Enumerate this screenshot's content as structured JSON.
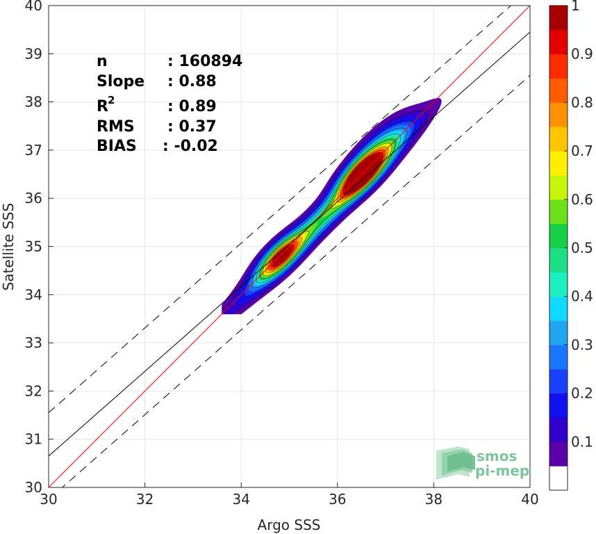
{
  "chart_data": {
    "type": "heatmap",
    "title": "",
    "xlabel": "Argo SSS",
    "ylabel": "Satellite SSS",
    "xlim": [
      30,
      40
    ],
    "ylim": [
      30,
      40
    ],
    "xticks": [
      "30",
      "32",
      "34",
      "36",
      "38",
      "40"
    ],
    "yticks": [
      "30",
      "31",
      "32",
      "33",
      "34",
      "35",
      "36",
      "37",
      "38",
      "39",
      "40"
    ],
    "grid": true,
    "stats": {
      "n_label": "n",
      "n_value": ": 160894",
      "slope_label": "Slope",
      "slope_value": ": 0.88",
      "r2_label": "R",
      "r2_sup": "2",
      "r2_value": ": 0.89",
      "rms_label": "RMS",
      "rms_value": ": 0.37",
      "bias_label": "BIAS",
      "bias_value": ": -0.02"
    },
    "lines": [
      {
        "name": "one-to-one",
        "color": "#ff0000",
        "style": "solid",
        "points": [
          [
            30,
            30
          ],
          [
            40,
            40
          ]
        ]
      },
      {
        "name": "regression",
        "color": "#000000",
        "style": "solid",
        "points": [
          [
            30,
            30.65
          ],
          [
            40,
            39.45
          ]
        ]
      },
      {
        "name": "upper-bound",
        "color": "#000000",
        "style": "dashed",
        "points": [
          [
            30,
            31.55
          ],
          [
            40,
            40.35
          ]
        ]
      },
      {
        "name": "lower-bound",
        "color": "#000000",
        "style": "dashed",
        "points": [
          [
            30,
            29.75
          ],
          [
            40,
            38.55
          ]
        ]
      }
    ],
    "density": {
      "base": 0.03,
      "peaks": [
        {
          "x": 34.8,
          "y": 34.78,
          "amp": 0.7,
          "su": 0.4,
          "sv": 0.16
        },
        {
          "x": 36.5,
          "y": 36.5,
          "amp": 1.0,
          "su": 0.42,
          "sv": 0.17
        },
        {
          "x": 35.7,
          "y": 35.6,
          "amp": 0.5,
          "su": 1.55,
          "sv": 0.15
        },
        {
          "x": 36.9,
          "y": 37.05,
          "amp": 0.35,
          "su": 0.55,
          "sv": 0.2
        }
      ]
    },
    "colorbar": {
      "range": [
        0,
        1
      ],
      "ticks": [
        "0.1",
        "0.2",
        "0.3",
        "0.4",
        "0.5",
        "0.6",
        "0.7",
        "0.8",
        "0.9",
        "1"
      ],
      "tick_values": [
        0.1,
        0.2,
        0.3,
        0.4,
        0.5,
        0.6,
        0.7,
        0.8,
        0.9,
        1.0
      ],
      "levels": [
        0.05,
        0.1,
        0.15,
        0.2,
        0.25,
        0.3,
        0.35,
        0.4,
        0.45,
        0.5,
        0.55,
        0.6,
        0.65,
        0.7,
        0.75,
        0.8,
        0.85,
        0.9,
        0.95,
        1.0
      ],
      "colors": [
        "#ffffff",
        "#5a00a8",
        "#3000cc",
        "#1010f0",
        "#1a40ff",
        "#1a75ff",
        "#1ea4f0",
        "#10d8ff",
        "#1ff0c2",
        "#1fdf86",
        "#18d048",
        "#6ee01a",
        "#c8f40a",
        "#ffef00",
        "#ffc400",
        "#ff9000",
        "#ff5c00",
        "#ff2a00",
        "#e40000",
        "#a80000"
      ]
    },
    "logo": {
      "line1": "smos",
      "line2": "pi-mep",
      "color": "#7cc49c"
    }
  }
}
